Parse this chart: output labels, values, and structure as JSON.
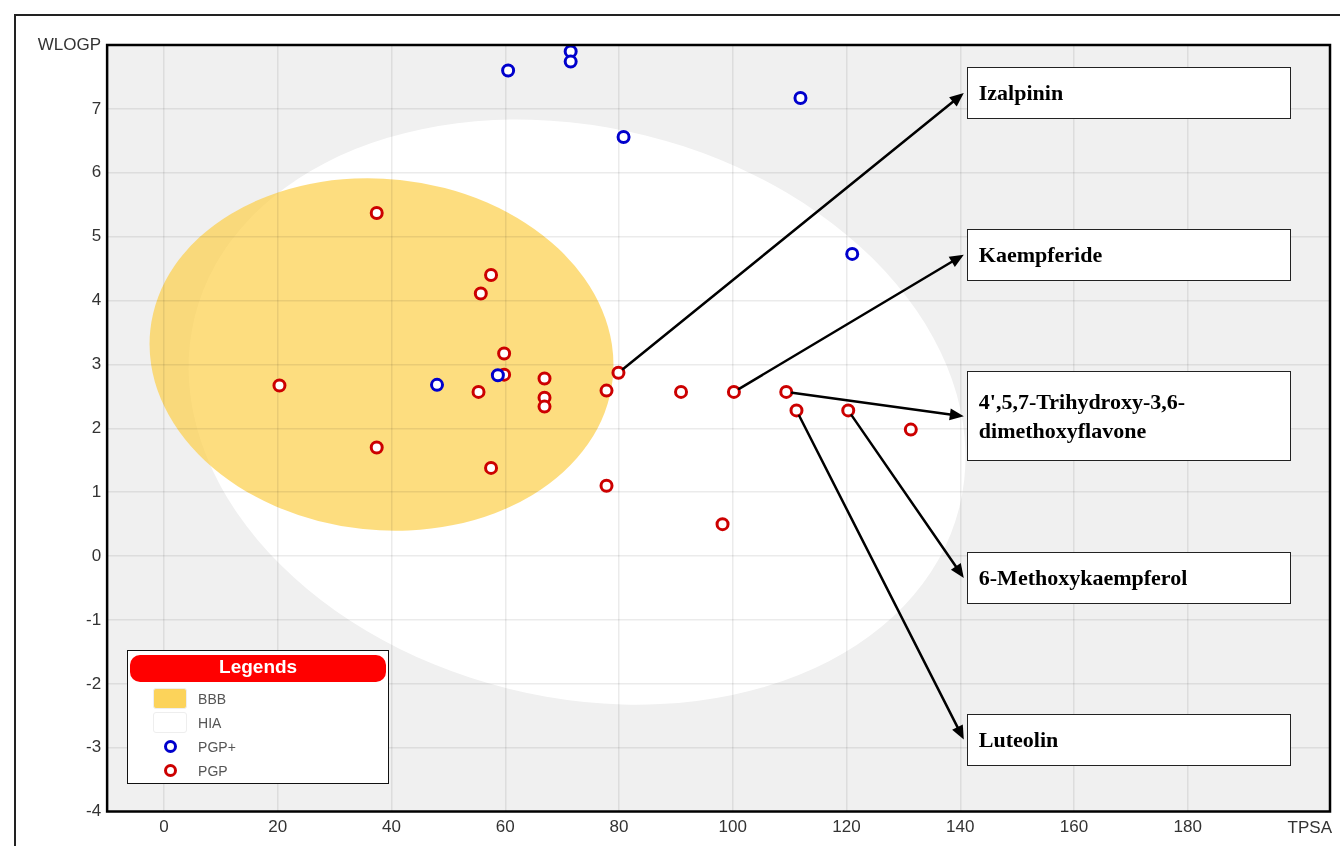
{
  "chart_data": {
    "type": "scatter",
    "xlabel": "TPSA",
    "ylabel": "WLOGP",
    "legend_title": "Legends",
    "legend": "bottom left",
    "grid": true,
    "marker": "circle",
    "xlim": [
      -10,
      205
    ],
    "xticks": [
      0,
      20,
      40,
      60,
      80,
      100,
      120,
      140,
      160,
      180
    ],
    "ylim": [
      -4,
      8
    ],
    "yticks": [
      -4,
      -3,
      -2,
      -1,
      0,
      1,
      2,
      3,
      4,
      5,
      6,
      7
    ],
    "series": [
      {
        "name": "PGP+",
        "color": "#0000cc",
        "x": [
          71.5,
          71.5,
          60.5,
          111.9,
          80.8,
          121,
          48,
          58.7
        ],
        "values": [
          7.9,
          7.74,
          7.6,
          7.17,
          6.56,
          4.73,
          2.68,
          2.83
        ]
      },
      {
        "name": "PGP",
        "color": "#cc0000",
        "x": [
          37.4,
          57.5,
          55.7,
          59.8,
          59.8,
          20.3,
          37.4,
          55.3,
          66.9,
          66.9,
          66.9,
          57.5,
          79.9,
          77.8,
          77.8,
          90.9,
          100.2,
          109.4,
          111.2,
          120.3,
          131.3,
          98.2
        ],
        "values": [
          5.37,
          4.4,
          4.11,
          3.17,
          2.84,
          2.67,
          1.7,
          2.57,
          2.78,
          2.48,
          2.34,
          1.38,
          2.87,
          2.59,
          1.1,
          2.57,
          2.57,
          2.57,
          2.28,
          2.28,
          1.98,
          0.5
        ]
      }
    ],
    "annotations": [
      "BBB",
      "HIA",
      {
        "text": "Izalpinin",
        "x": 79.9,
        "y": 2.87
      },
      {
        "text": "Kaempferide",
        "x": 100.2,
        "y": 2.57
      },
      {
        "text": "4',5,7-Trihydroxy-3,6-dimethoxyflavone",
        "x": 109.4,
        "y": 2.57
      },
      {
        "text": "6-Methoxykaempferol",
        "x": 120.3,
        "y": 2.28
      },
      {
        "text": "Luteolin",
        "x": 111.2,
        "y": 2.28
      }
    ]
  }
}
